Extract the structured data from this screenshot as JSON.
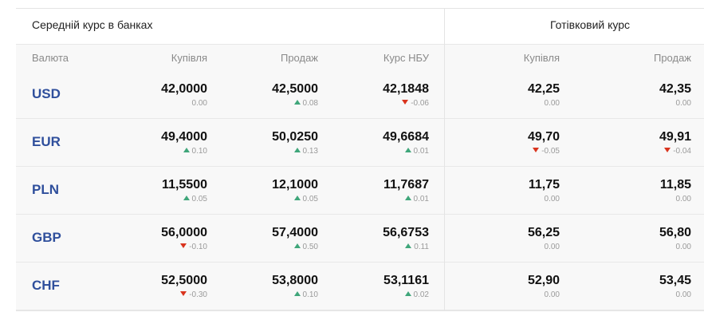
{
  "header": {
    "avg_title": "Середній курс в банках",
    "cash_title": "Готівковий курс"
  },
  "columns": {
    "currency": "Валюта",
    "buy": "Купівля",
    "sell": "Продаж",
    "nbu": "Курс НБУ",
    "cash_buy": "Купівля",
    "cash_sell": "Продаж"
  },
  "rows": [
    {
      "code": "USD",
      "buy": {
        "value": "42,0000",
        "change": "0.00",
        "dir": "none"
      },
      "sell": {
        "value": "42,5000",
        "change": "0.08",
        "dir": "up"
      },
      "nbu": {
        "value": "42,1848",
        "change": "-0.06",
        "dir": "down"
      },
      "cash_buy": {
        "value": "42,25",
        "change": "0.00",
        "dir": "none"
      },
      "cash_sell": {
        "value": "42,35",
        "change": "0.00",
        "dir": "none"
      }
    },
    {
      "code": "EUR",
      "buy": {
        "value": "49,4000",
        "change": "0.10",
        "dir": "up"
      },
      "sell": {
        "value": "50,0250",
        "change": "0.13",
        "dir": "up"
      },
      "nbu": {
        "value": "49,6684",
        "change": "0.01",
        "dir": "up"
      },
      "cash_buy": {
        "value": "49,70",
        "change": "-0.05",
        "dir": "down"
      },
      "cash_sell": {
        "value": "49,91",
        "change": "-0.04",
        "dir": "down"
      }
    },
    {
      "code": "PLN",
      "buy": {
        "value": "11,5500",
        "change": "0.05",
        "dir": "up"
      },
      "sell": {
        "value": "12,1000",
        "change": "0.05",
        "dir": "up"
      },
      "nbu": {
        "value": "11,7687",
        "change": "0.01",
        "dir": "up"
      },
      "cash_buy": {
        "value": "11,75",
        "change": "0.00",
        "dir": "none"
      },
      "cash_sell": {
        "value": "11,85",
        "change": "0.00",
        "dir": "none"
      }
    },
    {
      "code": "GBP",
      "buy": {
        "value": "56,0000",
        "change": "-0.10",
        "dir": "down"
      },
      "sell": {
        "value": "57,4000",
        "change": "0.50",
        "dir": "up"
      },
      "nbu": {
        "value": "56,6753",
        "change": "0.11",
        "dir": "up"
      },
      "cash_buy": {
        "value": "56,25",
        "change": "0.00",
        "dir": "none"
      },
      "cash_sell": {
        "value": "56,80",
        "change": "0.00",
        "dir": "none"
      }
    },
    {
      "code": "CHF",
      "buy": {
        "value": "52,5000",
        "change": "-0.30",
        "dir": "down"
      },
      "sell": {
        "value": "53,8000",
        "change": "0.10",
        "dir": "up"
      },
      "nbu": {
        "value": "53,1161",
        "change": "0.02",
        "dir": "up"
      },
      "cash_buy": {
        "value": "52,90",
        "change": "0.00",
        "dir": "none"
      },
      "cash_sell": {
        "value": "53,45",
        "change": "0.00",
        "dir": "none"
      }
    }
  ],
  "colors": {
    "up": "#3fa67a",
    "down": "#d9341e",
    "currency": "#2f4f9c"
  }
}
